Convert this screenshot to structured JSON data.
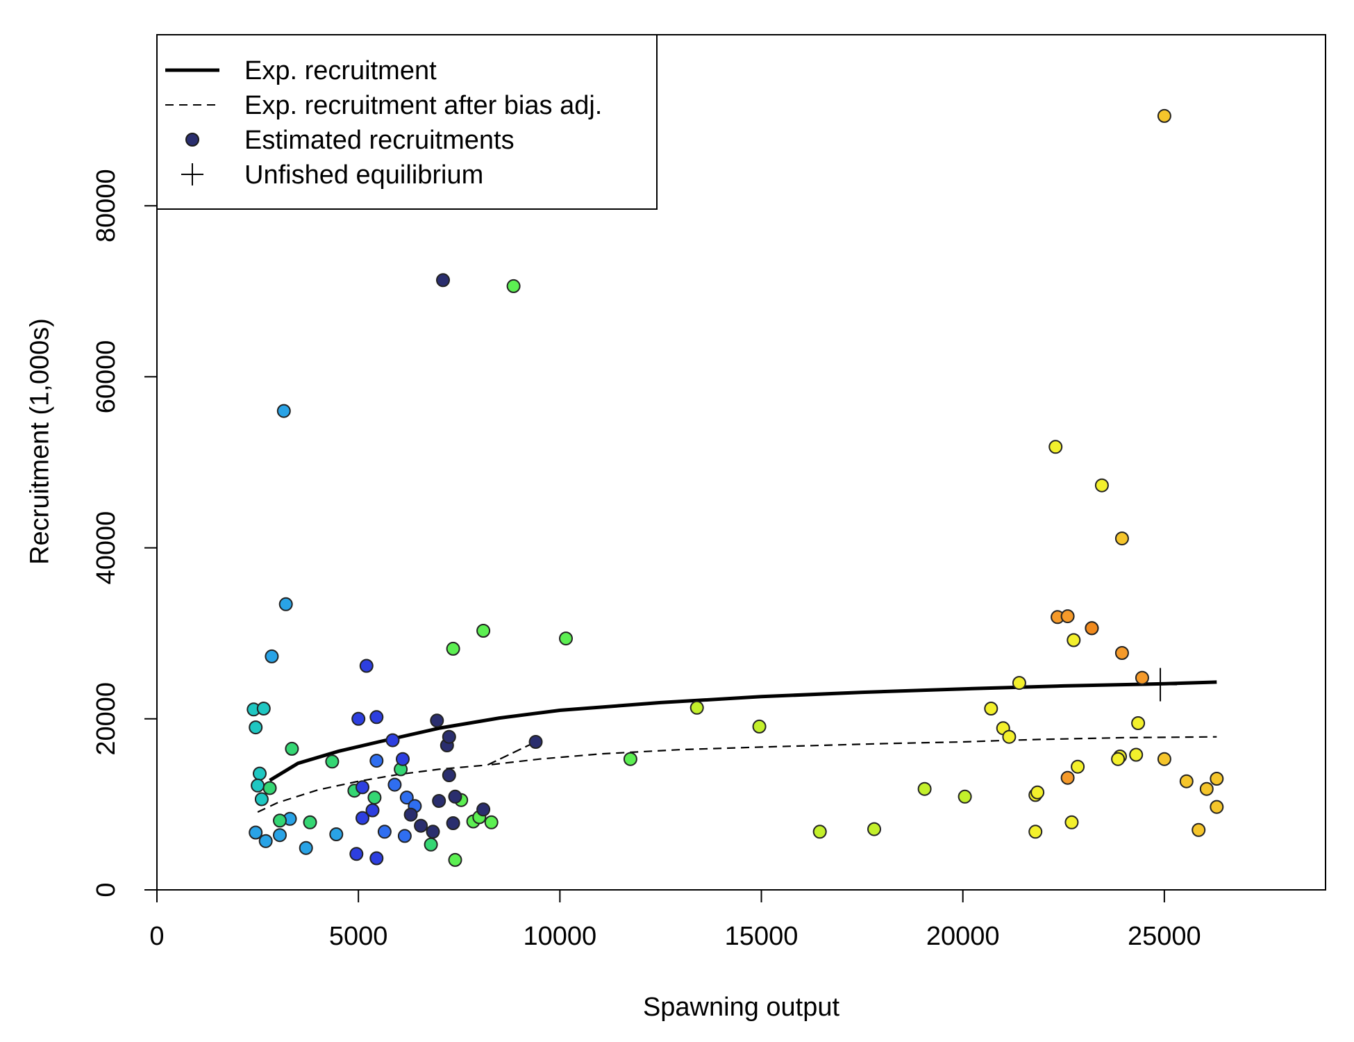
{
  "chart_data": {
    "type": "scatter",
    "title": "",
    "xlabel": "Spawning output",
    "ylabel": "Recruitment (1,000s)",
    "xlim": [
      0,
      29000
    ],
    "ylim": [
      0,
      100000
    ],
    "grid": false,
    "legend_position": "top-left",
    "x_ticks": [
      {
        "value": 0,
        "label": "0"
      },
      {
        "value": 5000,
        "label": "5000"
      },
      {
        "value": 10000,
        "label": "10000"
      },
      {
        "value": 15000,
        "label": "15000"
      },
      {
        "value": 20000,
        "label": "20000"
      },
      {
        "value": 25000,
        "label": "25000"
      }
    ],
    "y_ticks": [
      {
        "value": 0,
        "label": "0"
      },
      {
        "value": 20000,
        "label": "20000"
      },
      {
        "value": 40000,
        "label": "40000"
      },
      {
        "value": 60000,
        "label": "60000"
      },
      {
        "value": 80000,
        "label": "80000"
      }
    ],
    "legend": [
      {
        "key": "exp",
        "label": "Exp. recruitment"
      },
      {
        "key": "bias",
        "label": "Exp. recruitment after bias adj."
      },
      {
        "key": "est",
        "label": "Estimated recruitments"
      },
      {
        "key": "unfished",
        "label": "Unfished equilibrium"
      }
    ],
    "exp_recruitment": {
      "x": [
        2800,
        3500,
        4500,
        5500,
        7000,
        8500,
        10000,
        12500,
        15000,
        17500,
        20000,
        22500,
        25000,
        26300
      ],
      "y": [
        12800,
        14800,
        16200,
        17300,
        18900,
        20100,
        21000,
        21900,
        22600,
        23100,
        23500,
        23850,
        24100,
        24300
      ]
    },
    "bias_adjusted": {
      "x": [
        2500,
        3000,
        4000,
        5000,
        6000,
        7000,
        8200,
        9400,
        8200,
        9500,
        11000,
        13000,
        15000,
        18000,
        20000,
        21200,
        22000,
        24000,
        26300
      ],
      "y": [
        9100,
        10200,
        11700,
        12700,
        13500,
        14100,
        14600,
        17300,
        14600,
        15300,
        15900,
        16400,
        16700,
        17100,
        17300,
        17500,
        17600,
        17800,
        17900
      ]
    },
    "unfished_equilibrium": {
      "x": 24900,
      "y": 24000
    },
    "point_colors": {
      "navy": "#2a2e6e",
      "blue": "#2d3fe0",
      "royal": "#2f6ef0",
      "sky": "#29a3e6",
      "teal": "#1fc7c2",
      "green": "#35d673",
      "lime": "#5cef52",
      "yellowgreen": "#c3f02b",
      "yellow": "#f3f02c",
      "gold": "#f5c52b",
      "orange": "#f59a2a",
      "deeporange": "#f08a1e"
    },
    "points": [
      {
        "x": 2450,
        "y": 6700,
        "c": "sky"
      },
      {
        "x": 2700,
        "y": 5700,
        "c": "sky"
      },
      {
        "x": 3050,
        "y": 6400,
        "c": "sky"
      },
      {
        "x": 3700,
        "y": 4900,
        "c": "sky"
      },
      {
        "x": 4450,
        "y": 6500,
        "c": "sky"
      },
      {
        "x": 3300,
        "y": 8300,
        "c": "sky"
      },
      {
        "x": 2850,
        "y": 27300,
        "c": "sky"
      },
      {
        "x": 3200,
        "y": 33400,
        "c": "sky"
      },
      {
        "x": 3150,
        "y": 56000,
        "c": "sky"
      },
      {
        "x": 2400,
        "y": 21100,
        "c": "teal"
      },
      {
        "x": 2650,
        "y": 21200,
        "c": "teal"
      },
      {
        "x": 2450,
        "y": 19000,
        "c": "teal"
      },
      {
        "x": 2550,
        "y": 13600,
        "c": "teal"
      },
      {
        "x": 2500,
        "y": 12200,
        "c": "teal"
      },
      {
        "x": 2600,
        "y": 10600,
        "c": "teal"
      },
      {
        "x": 2800,
        "y": 11900,
        "c": "green"
      },
      {
        "x": 3050,
        "y": 8100,
        "c": "green"
      },
      {
        "x": 3800,
        "y": 7900,
        "c": "green"
      },
      {
        "x": 3350,
        "y": 16500,
        "c": "green"
      },
      {
        "x": 4350,
        "y": 15000,
        "c": "green"
      },
      {
        "x": 4900,
        "y": 11600,
        "c": "green"
      },
      {
        "x": 5400,
        "y": 10800,
        "c": "green"
      },
      {
        "x": 6050,
        "y": 14100,
        "c": "green"
      },
      {
        "x": 6800,
        "y": 5300,
        "c": "green"
      },
      {
        "x": 7400,
        "y": 3500,
        "c": "lime"
      },
      {
        "x": 7550,
        "y": 10500,
        "c": "lime"
      },
      {
        "x": 7850,
        "y": 8000,
        "c": "lime"
      },
      {
        "x": 8000,
        "y": 8500,
        "c": "lime"
      },
      {
        "x": 8300,
        "y": 7900,
        "c": "lime"
      },
      {
        "x": 7350,
        "y": 28200,
        "c": "lime"
      },
      {
        "x": 8100,
        "y": 30300,
        "c": "lime"
      },
      {
        "x": 8850,
        "y": 70600,
        "c": "lime"
      },
      {
        "x": 10150,
        "y": 29400,
        "c": "lime"
      },
      {
        "x": 11750,
        "y": 15300,
        "c": "lime"
      },
      {
        "x": 13400,
        "y": 21300,
        "c": "yellowgreen"
      },
      {
        "x": 14950,
        "y": 19100,
        "c": "yellowgreen"
      },
      {
        "x": 16450,
        "y": 6800,
        "c": "yellowgreen"
      },
      {
        "x": 17800,
        "y": 7100,
        "c": "yellowgreen"
      },
      {
        "x": 19050,
        "y": 11800,
        "c": "yellowgreen"
      },
      {
        "x": 20050,
        "y": 10900,
        "c": "yellowgreen"
      },
      {
        "x": 20700,
        "y": 21200,
        "c": "yellow"
      },
      {
        "x": 21000,
        "y": 18900,
        "c": "yellow"
      },
      {
        "x": 21150,
        "y": 17900,
        "c": "yellow"
      },
      {
        "x": 21400,
        "y": 24200,
        "c": "yellow"
      },
      {
        "x": 21800,
        "y": 11100,
        "c": "yellow"
      },
      {
        "x": 21800,
        "y": 6800,
        "c": "yellow"
      },
      {
        "x": 21850,
        "y": 11400,
        "c": "yellow"
      },
      {
        "x": 22300,
        "y": 51800,
        "c": "yellow"
      },
      {
        "x": 22750,
        "y": 29200,
        "c": "yellow"
      },
      {
        "x": 22850,
        "y": 14400,
        "c": "yellow"
      },
      {
        "x": 22700,
        "y": 7900,
        "c": "yellow"
      },
      {
        "x": 23450,
        "y": 47300,
        "c": "yellow"
      },
      {
        "x": 23900,
        "y": 15600,
        "c": "yellow"
      },
      {
        "x": 23850,
        "y": 15300,
        "c": "yellow"
      },
      {
        "x": 24300,
        "y": 15800,
        "c": "yellow"
      },
      {
        "x": 24350,
        "y": 19500,
        "c": "yellow"
      },
      {
        "x": 23950,
        "y": 41100,
        "c": "gold"
      },
      {
        "x": 25000,
        "y": 90500,
        "c": "gold"
      },
      {
        "x": 25000,
        "y": 15300,
        "c": "gold"
      },
      {
        "x": 25550,
        "y": 12700,
        "c": "gold"
      },
      {
        "x": 25850,
        "y": 7000,
        "c": "gold"
      },
      {
        "x": 26050,
        "y": 11800,
        "c": "gold"
      },
      {
        "x": 26300,
        "y": 13000,
        "c": "gold"
      },
      {
        "x": 26300,
        "y": 9700,
        "c": "gold"
      },
      {
        "x": 22350,
        "y": 31900,
        "c": "orange"
      },
      {
        "x": 22600,
        "y": 32000,
        "c": "orange"
      },
      {
        "x": 23200,
        "y": 30600,
        "c": "orange"
      },
      {
        "x": 23950,
        "y": 27700,
        "c": "orange"
      },
      {
        "x": 24450,
        "y": 24800,
        "c": "orange"
      },
      {
        "x": 22600,
        "y": 13100,
        "c": "orange"
      },
      {
        "x": 23200,
        "y": 30600,
        "c": "deeporange"
      },
      {
        "x": 4950,
        "y": 4200,
        "c": "blue"
      },
      {
        "x": 5450,
        "y": 3700,
        "c": "blue"
      },
      {
        "x": 5100,
        "y": 8400,
        "c": "blue"
      },
      {
        "x": 5350,
        "y": 9300,
        "c": "blue"
      },
      {
        "x": 5100,
        "y": 12000,
        "c": "blue"
      },
      {
        "x": 5000,
        "y": 20000,
        "c": "blue"
      },
      {
        "x": 5200,
        "y": 26200,
        "c": "blue"
      },
      {
        "x": 5450,
        "y": 20200,
        "c": "blue"
      },
      {
        "x": 5850,
        "y": 17500,
        "c": "blue"
      },
      {
        "x": 6100,
        "y": 15300,
        "c": "blue"
      },
      {
        "x": 5650,
        "y": 6800,
        "c": "royal"
      },
      {
        "x": 6150,
        "y": 6300,
        "c": "royal"
      },
      {
        "x": 5900,
        "y": 12300,
        "c": "royal"
      },
      {
        "x": 6200,
        "y": 10800,
        "c": "royal"
      },
      {
        "x": 6400,
        "y": 9800,
        "c": "royal"
      },
      {
        "x": 5450,
        "y": 15100,
        "c": "royal"
      },
      {
        "x": 6300,
        "y": 8800,
        "c": "navy"
      },
      {
        "x": 6550,
        "y": 7500,
        "c": "navy"
      },
      {
        "x": 6850,
        "y": 6800,
        "c": "navy"
      },
      {
        "x": 7000,
        "y": 10400,
        "c": "navy"
      },
      {
        "x": 7350,
        "y": 7800,
        "c": "navy"
      },
      {
        "x": 7400,
        "y": 10900,
        "c": "navy"
      },
      {
        "x": 7250,
        "y": 13400,
        "c": "navy"
      },
      {
        "x": 7200,
        "y": 16900,
        "c": "navy"
      },
      {
        "x": 7250,
        "y": 17900,
        "c": "navy"
      },
      {
        "x": 6950,
        "y": 19800,
        "c": "navy"
      },
      {
        "x": 8100,
        "y": 9400,
        "c": "navy"
      },
      {
        "x": 9400,
        "y": 17300,
        "c": "navy"
      },
      {
        "x": 7100,
        "y": 71300,
        "c": "navy"
      }
    ]
  }
}
